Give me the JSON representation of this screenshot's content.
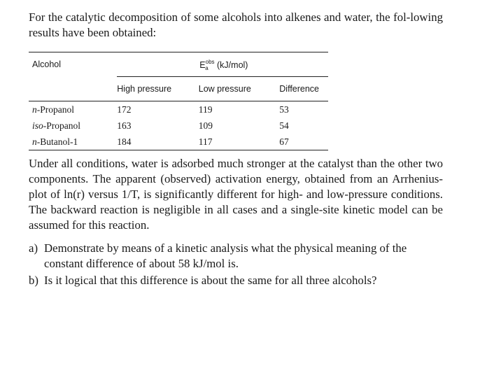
{
  "intro_text": "For the catalytic decomposition of some alcohols into alkenes and water, the fol-lowing results have been obtained:",
  "table": {
    "header_alcohol": "Alcohol",
    "header_energy_unit": "(kJ/mol)",
    "header_energy_symbol": "E",
    "header_energy_sup": "obs",
    "header_energy_sub": "a",
    "columns": [
      "High pressure",
      "Low pressure",
      "Difference"
    ],
    "rows": [
      {
        "prefix": "n",
        "name": "-Propanol",
        "high": "172",
        "low": "119",
        "diff": "53"
      },
      {
        "prefix": "iso",
        "name": "-Propanol",
        "high": "163",
        "low": "109",
        "diff": "54"
      },
      {
        "prefix": "n",
        "name": "-Butanol-1",
        "high": "184",
        "low": "117",
        "diff": "67"
      }
    ]
  },
  "body_text": "Under all conditions, water is adsorbed much stronger at the catalyst than the other two components. The apparent (observed) activation energy, obtained from an Arrhenius-plot of ln(r) versus 1/T, is significantly different for high- and low-pressure conditions. The backward reaction is negligible in all cases and a single-site kinetic model can be assumed for this reaction.",
  "questions": [
    {
      "label": "a)",
      "text": "Demonstrate by means of a kinetic analysis what the physical meaning of the constant difference of about 58 kJ/mol is."
    },
    {
      "label": "b)",
      "text": "Is it logical that this difference is about the same for all three alcohols?"
    }
  ]
}
